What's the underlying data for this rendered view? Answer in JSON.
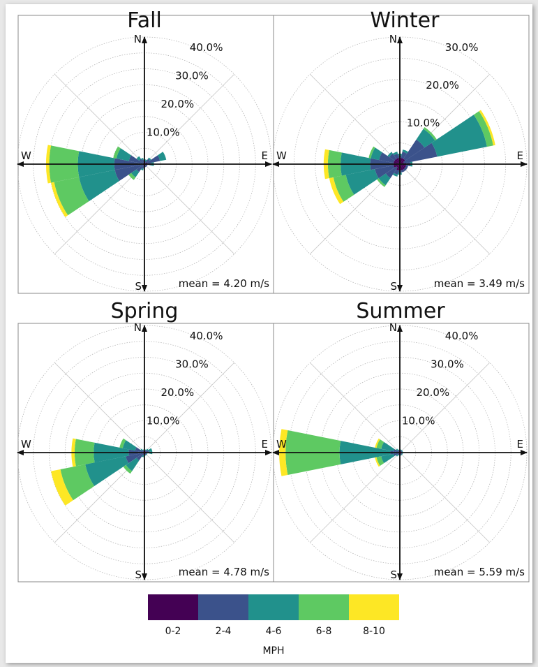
{
  "chart_data": [
    {
      "type": "windrose",
      "title": "Fall",
      "mean_label": "mean = 4.20 m/s",
      "rmax": 40,
      "ring_labels": [
        "10.0%",
        "20.0%",
        "30.0%",
        "40.0%"
      ],
      "directions": {
        "N": "N",
        "E": "E",
        "S": "S",
        "W": "W"
      },
      "bins": [
        {
          "dir": 270,
          "values": [
            0.5,
            9.5,
            21,
            30,
            31
          ]
        },
        {
          "dir": 247.5,
          "values": [
            0.5,
            9.5,
            21,
            29,
            30
          ]
        },
        {
          "dir": 292.5,
          "values": [
            0.5,
            5,
            9,
            10,
            10
          ]
        },
        {
          "dir": 67.5,
          "values": [
            1,
            5,
            7,
            7,
            7
          ]
        },
        {
          "dir": 225,
          "values": [
            0.5,
            3,
            5,
            6,
            6
          ]
        },
        {
          "dir": 90,
          "values": [
            1,
            2,
            3,
            3,
            3
          ]
        },
        {
          "dir": 315,
          "values": [
            0.5,
            2,
            3,
            3,
            3
          ]
        },
        {
          "dir": 45,
          "values": [
            0.5,
            2,
            2.5,
            2.5,
            2.5
          ]
        },
        {
          "dir": 202.5,
          "values": [
            0.5,
            1.5,
            2,
            2,
            2
          ]
        },
        {
          "dir": 337.5,
          "values": [
            0.5,
            1.5,
            2,
            2,
            2
          ]
        },
        {
          "dir": 0,
          "values": [
            0.5,
            1,
            1.5,
            1.5,
            1.5
          ]
        },
        {
          "dir": 22.5,
          "values": [
            0.5,
            1,
            1.5,
            1.5,
            1.5
          ]
        },
        {
          "dir": 112.5,
          "values": [
            0.5,
            1,
            1,
            1,
            1
          ]
        },
        {
          "dir": 135,
          "values": [
            0.5,
            1,
            1,
            1,
            1
          ]
        },
        {
          "dir": 157.5,
          "values": [
            0.5,
            1,
            1,
            1,
            1
          ]
        },
        {
          "dir": 180,
          "values": [
            0.5,
            1,
            1,
            1,
            1
          ]
        }
      ]
    },
    {
      "type": "windrose",
      "title": "Winter",
      "mean_label": "mean = 3.49 m/s",
      "rmax": 30,
      "ring_labels": [
        "10.0%",
        "20.0%",
        "30.0%"
      ],
      "directions": {
        "N": "N",
        "E": "E",
        "S": "S",
        "W": "W"
      },
      "bins": [
        {
          "dir": 67.5,
          "values": [
            1,
            9,
            21,
            22.5,
            23
          ]
        },
        {
          "dir": 270,
          "values": [
            1.5,
            7,
            14,
            17,
            18
          ]
        },
        {
          "dir": 247.5,
          "values": [
            1.5,
            6,
            13,
            16,
            17
          ]
        },
        {
          "dir": 45,
          "values": [
            1.5,
            7,
            10,
            10.5,
            10.5
          ]
        },
        {
          "dir": 292.5,
          "values": [
            1.5,
            5,
            7,
            7.5,
            7.5
          ]
        },
        {
          "dir": 225,
          "values": [
            1,
            4,
            6,
            6.5,
            6.5
          ]
        },
        {
          "dir": 22.5,
          "values": [
            1.5,
            3,
            3.5,
            3.5,
            3.5
          ]
        },
        {
          "dir": 315,
          "values": [
            1.5,
            3,
            3.5,
            3.5,
            3.5
          ]
        },
        {
          "dir": 90,
          "values": [
            1.5,
            2.5,
            3,
            3,
            3
          ]
        },
        {
          "dir": 337.5,
          "values": [
            1.5,
            2.5,
            3,
            3,
            3
          ]
        },
        {
          "dir": 0,
          "values": [
            1.5,
            2,
            2.5,
            2.5,
            2.5
          ]
        },
        {
          "dir": 202.5,
          "values": [
            1.5,
            2.5,
            3,
            3,
            3
          ]
        },
        {
          "dir": 112.5,
          "values": [
            1.5,
            2,
            2,
            2,
            2
          ]
        },
        {
          "dir": 135,
          "values": [
            1.5,
            2,
            2,
            2,
            2
          ]
        },
        {
          "dir": 157.5,
          "values": [
            1.5,
            2,
            2,
            2,
            2
          ]
        },
        {
          "dir": 180,
          "values": [
            1.5,
            2,
            2.5,
            2.5,
            2.5
          ]
        }
      ]
    },
    {
      "type": "windrose",
      "title": "Spring",
      "mean_label": "mean = 4.78 m/s",
      "rmax": 40,
      "ring_labels": [
        "10.0%",
        "20.0%",
        "30.0%",
        "40.0%"
      ],
      "directions": {
        "N": "N",
        "E": "E",
        "S": "S",
        "W": "W"
      },
      "bins": [
        {
          "dir": 247.5,
          "values": [
            0.5,
            6,
            19,
            27,
            30
          ]
        },
        {
          "dir": 270,
          "values": [
            0.5,
            5,
            16,
            22,
            23
          ]
        },
        {
          "dir": 292.5,
          "values": [
            0.5,
            3,
            7,
            8,
            8
          ]
        },
        {
          "dir": 225,
          "values": [
            0.5,
            3,
            7,
            8,
            8
          ]
        },
        {
          "dir": 67.5,
          "values": [
            0.5,
            1.5,
            2.5,
            2.5,
            2.5
          ]
        },
        {
          "dir": 90,
          "values": [
            0.5,
            1.5,
            2.5,
            2.5,
            2.5
          ]
        },
        {
          "dir": 45,
          "values": [
            0.5,
            1,
            1.5,
            1.5,
            1.5
          ]
        },
        {
          "dir": 315,
          "values": [
            0.5,
            1,
            1.5,
            1.5,
            1.5
          ]
        },
        {
          "dir": 202.5,
          "values": [
            0.5,
            1,
            1.5,
            1.5,
            1.5
          ]
        },
        {
          "dir": 0,
          "values": [
            0.5,
            0.8,
            1,
            1,
            1
          ]
        },
        {
          "dir": 22.5,
          "values": [
            0.5,
            0.8,
            1,
            1,
            1
          ]
        },
        {
          "dir": 112.5,
          "values": [
            0.5,
            0.8,
            1,
            1,
            1
          ]
        },
        {
          "dir": 135,
          "values": [
            0.5,
            0.8,
            1,
            1,
            1
          ]
        },
        {
          "dir": 157.5,
          "values": [
            0.5,
            0.8,
            1,
            1,
            1
          ]
        },
        {
          "dir": 180,
          "values": [
            0.5,
            0.8,
            1,
            1,
            1
          ]
        },
        {
          "dir": 337.5,
          "values": [
            0.5,
            0.8,
            1,
            1,
            1
          ]
        }
      ]
    },
    {
      "type": "windrose",
      "title": "Summer",
      "mean_label": "mean = 5.59 m/s",
      "rmax": 40,
      "ring_labels": [
        "10.0%",
        "20.0%",
        "30.0%",
        "40.0%"
      ],
      "directions": {
        "N": "N",
        "E": "E",
        "S": "S",
        "W": "W"
      },
      "bins": [
        {
          "dir": 270,
          "values": [
            0.5,
            3,
            19,
            36,
            38
          ]
        },
        {
          "dir": 292.5,
          "values": [
            0.5,
            2,
            6,
            7.5,
            8
          ]
        },
        {
          "dir": 247.5,
          "values": [
            0.5,
            2,
            6,
            7.5,
            8
          ]
        },
        {
          "dir": 315,
          "values": [
            0.5,
            1,
            1.5,
            1.5,
            1.5
          ]
        },
        {
          "dir": 225,
          "values": [
            0.5,
            1,
            1.5,
            1.5,
            1.5
          ]
        },
        {
          "dir": 0,
          "values": [
            0.5,
            0.8,
            1,
            1,
            1
          ]
        },
        {
          "dir": 22.5,
          "values": [
            0.5,
            0.8,
            1,
            1,
            1
          ]
        },
        {
          "dir": 45,
          "values": [
            0.5,
            0.8,
            1,
            1,
            1
          ]
        },
        {
          "dir": 67.5,
          "values": [
            0.5,
            0.8,
            1,
            1,
            1
          ]
        },
        {
          "dir": 90,
          "values": [
            0.5,
            0.8,
            1,
            1,
            1
          ]
        },
        {
          "dir": 112.5,
          "values": [
            0.5,
            0.8,
            1,
            1,
            1
          ]
        },
        {
          "dir": 135,
          "values": [
            0.5,
            0.8,
            1,
            1,
            1
          ]
        },
        {
          "dir": 157.5,
          "values": [
            0.5,
            0.8,
            1,
            1,
            1
          ]
        },
        {
          "dir": 180,
          "values": [
            0.5,
            0.8,
            1,
            1,
            1
          ]
        },
        {
          "dir": 202.5,
          "values": [
            0.5,
            0.8,
            1,
            1,
            1
          ]
        },
        {
          "dir": 337.5,
          "values": [
            0.5,
            0.8,
            1,
            1,
            1
          ]
        }
      ]
    }
  ],
  "legend": {
    "title": "MPH",
    "bins": [
      "0-2",
      "2-4",
      "4-6",
      "6-8",
      "8-10"
    ],
    "colors": [
      "#440154",
      "#3b528b",
      "#21918c",
      "#5ec962",
      "#fde725"
    ]
  }
}
